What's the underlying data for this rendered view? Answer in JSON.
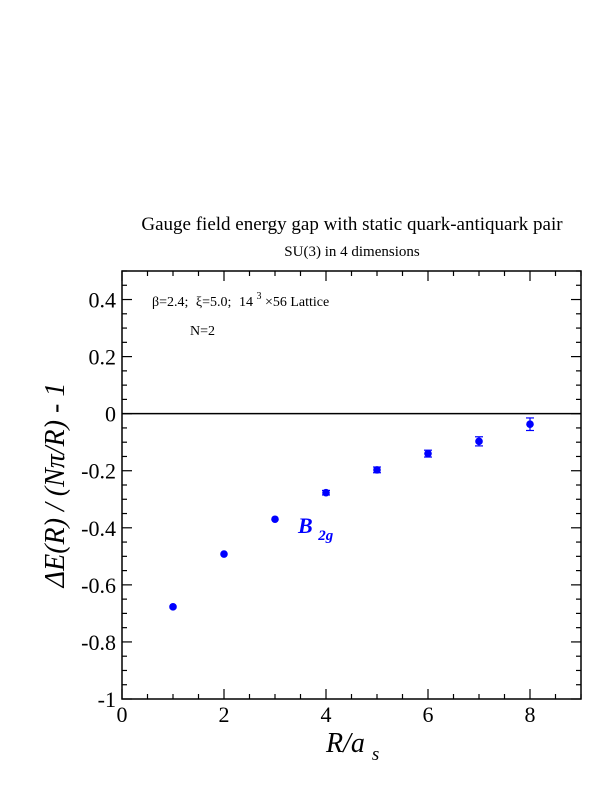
{
  "chart_data": {
    "type": "scatter",
    "title": "Gauge field energy gap with static quark-antiquark pair",
    "subtitle": "SU(3) in 4 dimensions",
    "xlabel": {
      "main": "R/a",
      "sub": "s"
    },
    "ylabel": "ΔE(R) / (Nπ/R) - 1",
    "xlim": [
      0,
      9
    ],
    "ylim": [
      -1,
      0.5
    ],
    "x_ticks": [
      0,
      2,
      4,
      6,
      8
    ],
    "y_ticks": [
      {
        "value": 0.4,
        "label": "0.4"
      },
      {
        "value": 0.2,
        "label": "0.2"
      },
      {
        "value": 0,
        "label": "0"
      },
      {
        "value": -0.2,
        "label": "-0.2"
      },
      {
        "value": -0.4,
        "label": "-0.4"
      },
      {
        "value": -0.6,
        "label": "-0.6"
      },
      {
        "value": -0.8,
        "label": "-0.8"
      },
      {
        "value": -1,
        "label": "-1"
      }
    ],
    "reference_line_y": 0,
    "grid": false,
    "annotations": {
      "line1": {
        "beta": "β=2.4;",
        "xi": "ξ=5.0;",
        "lattice_base": "14",
        "lattice_exp": "3",
        "lattice_rest": "×56 Lattice"
      },
      "line2": "N=2"
    },
    "series": [
      {
        "label_main": "B",
        "label_sub": "2g",
        "color": "#0000ff",
        "points": [
          {
            "x": 1,
            "y": -0.677,
            "err": 0.006
          },
          {
            "x": 2,
            "y": -0.492,
            "err": 0.006
          },
          {
            "x": 3,
            "y": -0.37,
            "err": 0.007
          },
          {
            "x": 4,
            "y": -0.277,
            "err": 0.008
          },
          {
            "x": 5,
            "y": -0.197,
            "err": 0.01
          },
          {
            "x": 6,
            "y": -0.14,
            "err": 0.012
          },
          {
            "x": 7,
            "y": -0.097,
            "err": 0.016
          },
          {
            "x": 8,
            "y": -0.037,
            "err": 0.022
          }
        ]
      }
    ]
  }
}
